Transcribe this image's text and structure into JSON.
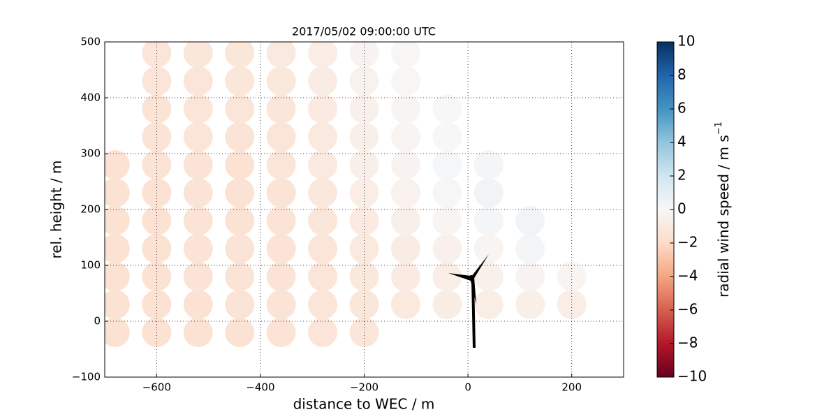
{
  "chart_data": {
    "type": "scatter",
    "title": "2017/05/02 09:00:00 UTC",
    "x_label": "distance to WEC / m",
    "y_label": "rel. height / m",
    "colorbar_label": "radial wind speed / m s",
    "colorbar_label_sup": "−1",
    "xlim": [
      -700,
      300
    ],
    "ylim": [
      -100,
      500
    ],
    "xticks": [
      {
        "value": -600,
        "label": "−600"
      },
      {
        "value": -400,
        "label": "−400"
      },
      {
        "value": -200,
        "label": "−200"
      },
      0,
      200
    ],
    "yticks": [
      {
        "value": -100,
        "label": "−100"
      },
      0,
      100,
      200,
      300,
      400,
      500
    ],
    "grid": true,
    "clim": [
      -10,
      10
    ],
    "cticks": [
      {
        "value": -10,
        "label": "−10"
      },
      {
        "value": -8,
        "label": "−8"
      },
      {
        "value": -6,
        "label": "−6"
      },
      {
        "value": -4,
        "label": "−4"
      },
      {
        "value": -2,
        "label": "−2"
      },
      0,
      2,
      4,
      6,
      8,
      10
    ],
    "colormap": [
      "#67001f",
      "#b2182b",
      "#d6604d",
      "#f4a582",
      "#fddbc7",
      "#f7f7f7",
      "#d1e5f0",
      "#92c5de",
      "#4393c3",
      "#2166ac",
      "#053061"
    ],
    "x": [
      -680,
      -600,
      -520,
      -440,
      -360,
      -280,
      -200,
      -680,
      -600,
      -520,
      -440,
      -360,
      -280,
      -200,
      -120,
      -40,
      40,
      120,
      200,
      -680,
      -600,
      -520,
      -440,
      -360,
      -280,
      -200,
      -120,
      -40,
      40,
      120,
      200,
      -680,
      -600,
      -520,
      -440,
      -360,
      -280,
      -200,
      -120,
      -40,
      40,
      120,
      -680,
      -600,
      -520,
      -440,
      -360,
      -280,
      -200,
      -120,
      -40,
      40,
      120,
      -680,
      -600,
      -520,
      -440,
      -360,
      -280,
      -200,
      -120,
      -40,
      40,
      -680,
      -600,
      -520,
      -440,
      -360,
      -280,
      -200,
      -120,
      -40,
      40,
      -600,
      -520,
      -440,
      -360,
      -280,
      -200,
      -120,
      -40,
      -600,
      -520,
      -440,
      -360,
      -280,
      -200,
      -120,
      -40,
      -600,
      -520,
      -440,
      -360,
      -280,
      -200,
      -120,
      -600,
      -520,
      -440,
      -360,
      -280,
      -200,
      -120
    ],
    "y": [
      -20,
      -20,
      -20,
      -20,
      -20,
      -20,
      -20,
      30,
      30,
      30,
      30,
      30,
      30,
      30,
      30,
      30,
      30,
      30,
      30,
      80,
      80,
      80,
      80,
      80,
      80,
      80,
      80,
      80,
      80,
      80,
      80,
      130,
      130,
      130,
      130,
      130,
      130,
      130,
      130,
      130,
      130,
      130,
      180,
      180,
      180,
      180,
      180,
      180,
      180,
      180,
      180,
      180,
      180,
      230,
      230,
      230,
      230,
      230,
      230,
      230,
      230,
      230,
      230,
      280,
      280,
      280,
      280,
      280,
      280,
      280,
      280,
      280,
      280,
      330,
      330,
      330,
      330,
      330,
      330,
      330,
      330,
      380,
      380,
      380,
      380,
      380,
      380,
      380,
      380,
      430,
      430,
      430,
      430,
      430,
      430,
      430,
      480,
      480,
      480,
      480,
      480,
      480,
      480
    ],
    "values": [
      -1.5,
      -1.5,
      -1.5,
      -1.5,
      -1.4,
      -1.3,
      -1.2,
      -1.5,
      -1.5,
      -1.5,
      -1.4,
      -1.4,
      -1.3,
      -1.2,
      -1.0,
      -0.8,
      -0.7,
      -0.6,
      -0.7,
      -1.5,
      -1.5,
      -1.4,
      -1.4,
      -1.4,
      -1.3,
      -1.1,
      -0.9,
      -0.7,
      -0.5,
      -0.3,
      -0.2,
      -1.5,
      -1.5,
      -1.4,
      -1.4,
      -1.4,
      -1.3,
      -1.0,
      -0.8,
      -0.5,
      -0.2,
      0.2,
      -1.5,
      -1.5,
      -1.4,
      -1.5,
      -1.4,
      -1.2,
      -0.9,
      -0.6,
      -0.2,
      0.2,
      0.3,
      -1.5,
      -1.5,
      -1.4,
      -1.5,
      -1.4,
      -1.1,
      -0.7,
      -0.4,
      0.1,
      0.3,
      -1.5,
      -1.4,
      -1.4,
      -1.5,
      -1.3,
      -1.0,
      -0.6,
      -0.3,
      0.1,
      0.2,
      -1.4,
      -1.3,
      -1.4,
      -1.3,
      -1.0,
      -0.6,
      -0.2,
      0.0,
      -1.4,
      -1.3,
      -1.3,
      -1.2,
      -0.9,
      -0.5,
      -0.2,
      0.0,
      -1.3,
      -1.3,
      -1.2,
      -1.1,
      -0.8,
      -0.4,
      -0.1,
      -1.3,
      -1.2,
      -1.2,
      -1.0,
      -0.7,
      -0.3,
      -0.1
    ]
  }
}
